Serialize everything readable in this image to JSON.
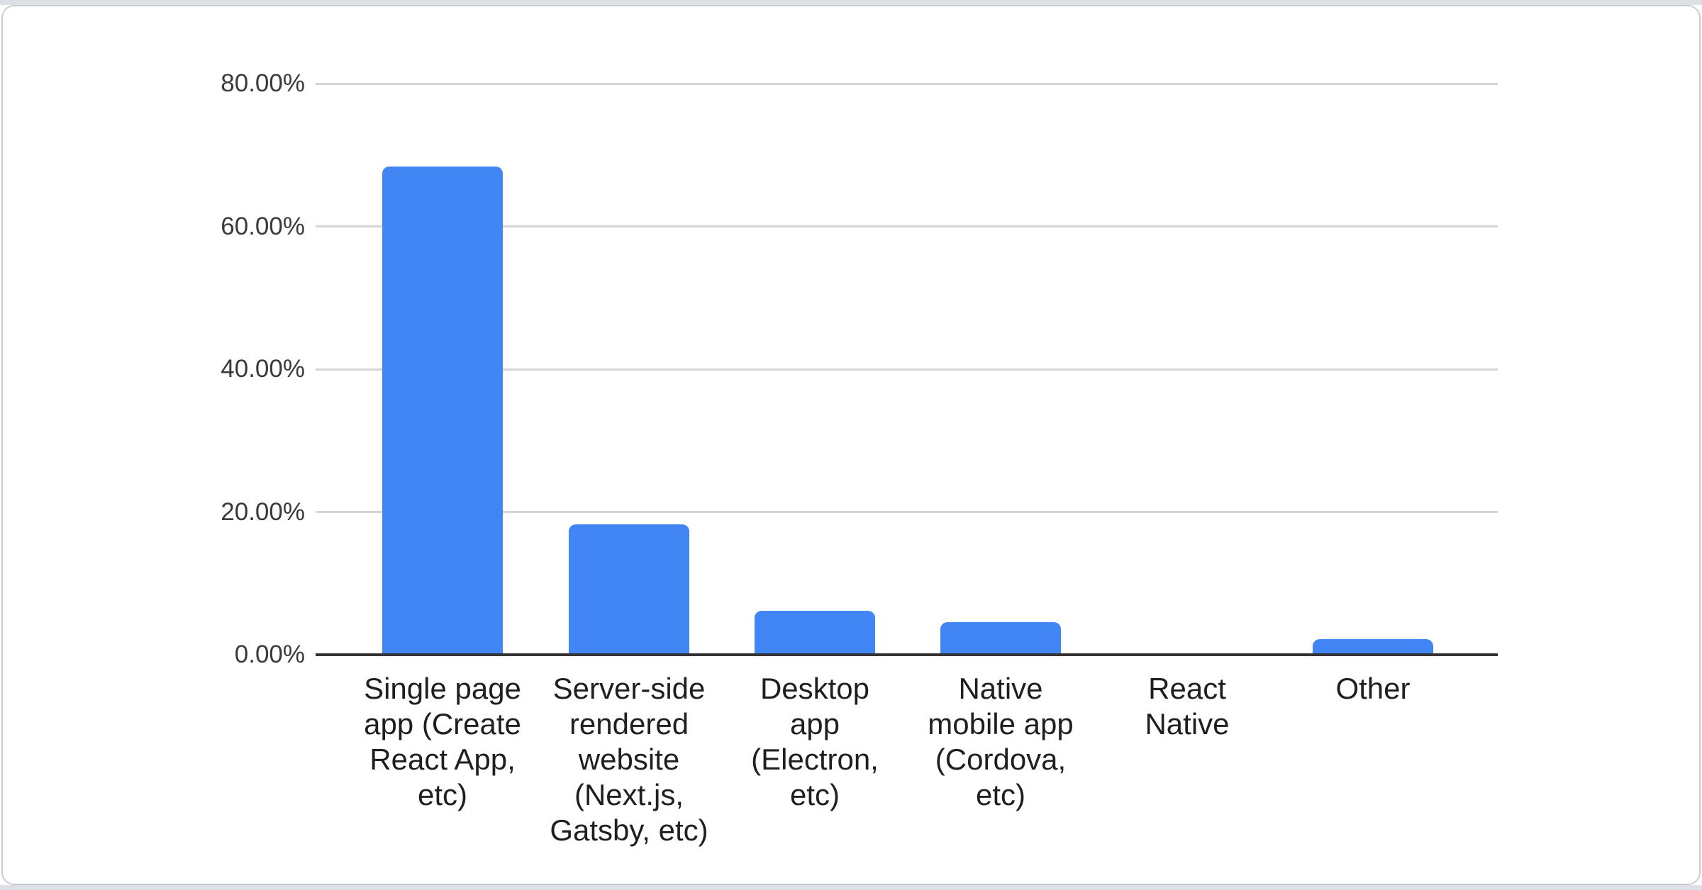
{
  "page": {
    "background": "#ffffff",
    "edge_strip_color": "#dde1e6"
  },
  "card": {
    "background": "#ffffff",
    "border_color": "#c8ccd1"
  },
  "chart_data": {
    "type": "bar",
    "title": "",
    "xlabel": "",
    "ylabel": "",
    "legend": "none",
    "grid": "horizontal",
    "bar_color": "#4285f4",
    "gridline_color": "#d5d5d5",
    "axis_line_color": "#333333",
    "ytick_label_color": "#3a3a3a",
    "xtick_label_color": "#1f1f1f",
    "ylim": [
      0,
      80
    ],
    "yticks": [
      {
        "value": 80,
        "label": "80.00%"
      },
      {
        "value": 60,
        "label": "60.00%"
      },
      {
        "value": 40,
        "label": "40.00%"
      },
      {
        "value": 20,
        "label": "20.00%"
      },
      {
        "value": 0,
        "label": "0.00%"
      }
    ],
    "categories": [
      "Single page app (Create React App, etc)",
      "Server-side rendered website (Next.js, Gatsby, etc)",
      "Desktop app (Electron, etc)",
      "Native mobile app (Cordova, etc)",
      "React Native",
      "Other"
    ],
    "categories_wrapped": [
      "Single page\napp (Create\nReact App,\netc)",
      "Server-side\nrendered\nwebsite\n(Next.js,\nGatsby, etc)",
      "Desktop\napp\n(Electron,\netc)",
      "Native\nmobile app\n(Cordova,\netc)",
      "React\nNative",
      "Other"
    ],
    "values": [
      68.4,
      18.3,
      6.2,
      4.6,
      0,
      2.2
    ],
    "value_unit": "percent"
  }
}
